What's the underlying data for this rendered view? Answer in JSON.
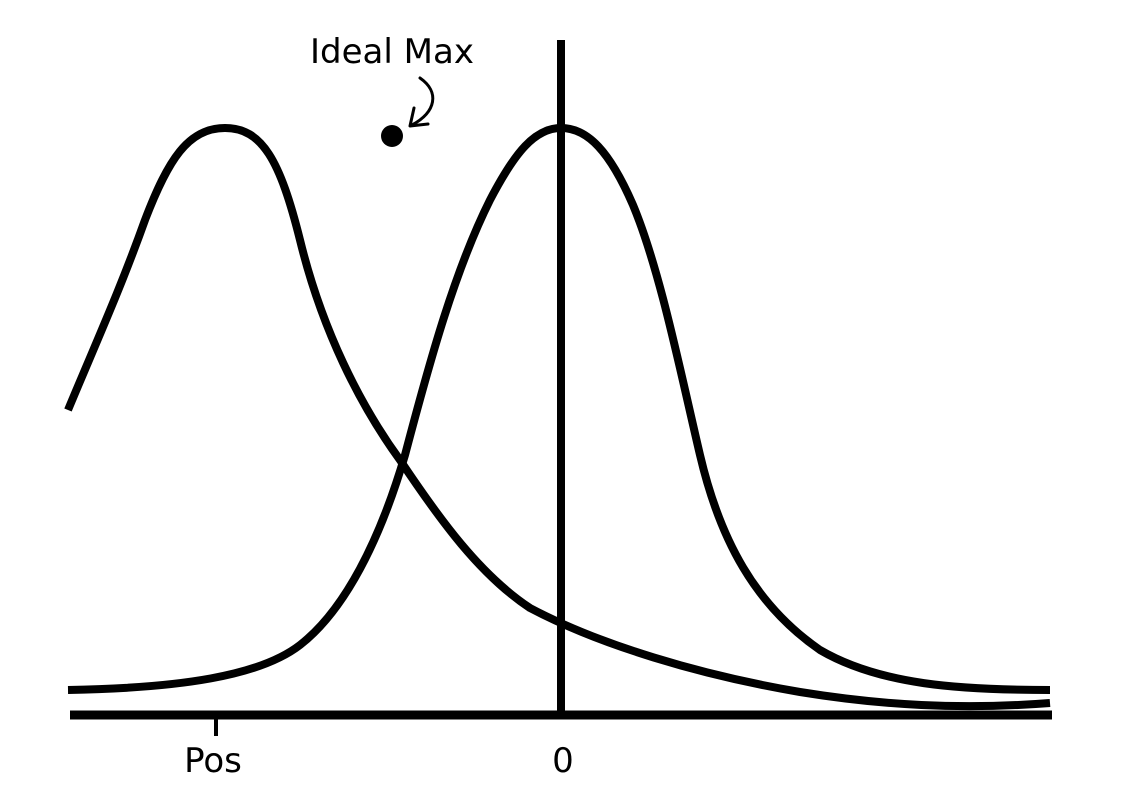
{
  "diagram": {
    "annotation_label": "Ideal Max",
    "tick_labels": {
      "pos": "Pos",
      "zero": "0"
    },
    "colors": {
      "ink": "#000000",
      "background": "#ffffff"
    }
  }
}
